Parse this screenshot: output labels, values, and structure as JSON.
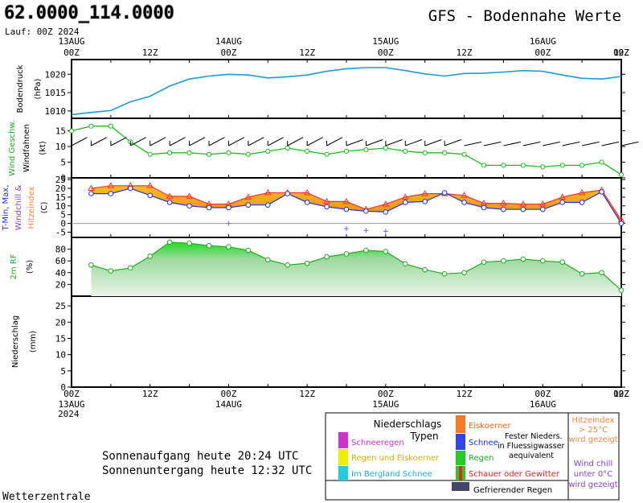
{
  "header": {
    "coords": "62.0000_114.0000",
    "run": "Lauf: 00Z",
    "title": "GFS - Bodennahe Werte"
  },
  "time_axis": {
    "hours": [
      "00Z",
      "12Z",
      "00Z",
      "12Z",
      "00Z",
      "12Z",
      "00Z",
      "12Z"
    ],
    "top_dates": [
      "13AUG",
      "14AUG",
      "15AUG",
      "16AUG"
    ],
    "top_year": "2024",
    "bottom_dates": [
      "13AUG",
      "14AUG",
      "15AUG",
      "16AUG"
    ],
    "bottom_year": "2024"
  },
  "colors": {
    "pressure": "#1e9bd7",
    "wind": "#22bb22",
    "tmax": "#ff3333",
    "wind_chill": "#2233dd",
    "heat_fill_top": "#f0c020",
    "heat_fill_bottom": "#f08020",
    "rh_top": "#00dd00",
    "rh_bottom": "#eaf3ea"
  },
  "chart_data": [
    {
      "type": "line",
      "name": "bodendruck",
      "ylabel": [
        "Bodendruck",
        "(hPa)"
      ],
      "yticks": [
        1010,
        1015,
        1020
      ],
      "ylim": [
        1008,
        1024
      ],
      "x": [
        0,
        3,
        6,
        9,
        12,
        15,
        18,
        21,
        24,
        27,
        30,
        33,
        36,
        39,
        42,
        45,
        48,
        51,
        54,
        57,
        60,
        63,
        66,
        69,
        72,
        75,
        78,
        81,
        84
      ],
      "values": [
        1009,
        1009.6,
        1010.1,
        1012.5,
        1014,
        1016.8,
        1018.7,
        1019.5,
        1020,
        1019.8,
        1019,
        1019.3,
        1019.8,
        1020.8,
        1021.5,
        1021.8,
        1021.8,
        1021,
        1020.1,
        1019.5,
        1020.2,
        1020.3,
        1020.6,
        1021,
        1020.8,
        1019.8,
        1018.9,
        1018.7,
        1019.4
      ]
    },
    {
      "type": "line",
      "name": "wind",
      "ylabel": [
        "Wind Geschw.",
        "Windfahnen",
        "(kt)"
      ],
      "yticks": [
        0,
        5,
        10,
        15
      ],
      "ylim": [
        0,
        19
      ],
      "x": [
        0,
        3,
        6,
        9,
        12,
        15,
        18,
        21,
        24,
        27,
        30,
        33,
        36,
        39,
        42,
        45,
        48,
        51,
        54,
        57,
        60,
        63,
        66,
        69,
        72,
        75,
        78,
        81,
        84
      ],
      "values": [
        15,
        16.5,
        16.5,
        11.5,
        7.5,
        8,
        8,
        7.5,
        8,
        7.5,
        8.5,
        9.5,
        8.5,
        7.5,
        8.5,
        9,
        9.5,
        8.5,
        8,
        8,
        7.5,
        4,
        4,
        4,
        3.5,
        4,
        4,
        5,
        1
      ]
    },
    {
      "type": "line",
      "name": "temperatur",
      "ylabel": [
        "T-Min, Max,",
        "Windchill &",
        "Hitzeindex",
        "(C)"
      ],
      "yticks": [
        -5,
        0,
        5,
        10,
        15,
        20,
        25
      ],
      "ylim": [
        -8,
        26
      ],
      "x": [
        3,
        6,
        9,
        12,
        15,
        18,
        21,
        24,
        27,
        30,
        33,
        36,
        39,
        42,
        45,
        48,
        51,
        54,
        57,
        60,
        63,
        66,
        69,
        72,
        75,
        78,
        81,
        84
      ],
      "series": [
        {
          "name": "T-Max",
          "values": [
            20,
            21.5,
            21.5,
            21.5,
            15.5,
            15.5,
            11,
            11,
            15,
            17.5,
            17.5,
            17.5,
            12.5,
            12.5,
            8,
            11,
            15,
            17,
            17,
            16,
            11.5,
            11.5,
            11,
            11,
            15,
            17.5,
            19,
            2
          ]
        },
        {
          "name": "T-Min",
          "values": [
            17,
            17,
            20,
            16,
            12,
            10,
            9,
            9,
            10.5,
            10.5,
            17,
            12,
            9.5,
            8,
            7,
            6.5,
            12,
            12.5,
            17.5,
            12,
            9,
            8,
            8,
            8,
            12,
            12,
            18,
            0
          ]
        }
      ],
      "minus_marks": [
        {
          "x": 24,
          "v": 0
        },
        {
          "x": 42,
          "v": -3
        },
        {
          "x": 45,
          "v": -4
        },
        {
          "x": 48,
          "v": -4.5
        }
      ]
    },
    {
      "type": "area",
      "name": "feuchte",
      "ylabel": [
        "2m RF",
        "(%)"
      ],
      "yticks": [
        20,
        40,
        60,
        80
      ],
      "ylim": [
        0,
        100
      ],
      "x": [
        3,
        6,
        9,
        12,
        15,
        18,
        21,
        24,
        27,
        30,
        33,
        36,
        39,
        42,
        45,
        48,
        51,
        54,
        57,
        60,
        63,
        66,
        69,
        72,
        75,
        78,
        81,
        84
      ],
      "values": [
        53,
        43,
        48,
        68,
        92,
        90,
        86,
        84,
        78,
        62,
        53,
        56,
        67,
        72,
        78,
        76,
        55,
        45,
        38,
        40,
        58,
        60,
        63,
        60,
        58,
        38,
        40,
        10
      ]
    },
    {
      "type": "bar",
      "name": "niederschlag",
      "ylabel": [
        "Niederschlag",
        "(mm)"
      ],
      "yticks": [
        0,
        5,
        10,
        15,
        20,
        25
      ],
      "ylim": [
        0,
        28
      ],
      "values": []
    }
  ],
  "legend": {
    "title1": "Niederschlags",
    "title2": "Typen",
    "schneeregen": "Schneeregen",
    "regen_eis": "Regen und Eiskoerner",
    "bergland": "Im Bergland Schnee",
    "eiskoerner": "Eiskoerner",
    "schnee": "Schnee",
    "fest1": "Fester Nieders.",
    "fest2": "in Fluessigwasser",
    "fest3": "aequivalent",
    "regen": "Regen",
    "schauer": "Schauer oder Gewitter",
    "gefrier": "Gefrierender Regen",
    "heat1": "Hitzeindex",
    "heat2": "> 25°C",
    "heat3": "wird gezeigt",
    "chill1": "Wind chill",
    "chill2": "unter 0°C",
    "chill3": "wird gezeigt"
  },
  "sun": {
    "rise": "Sonnenaufgang heute 20:24 UTC",
    "set": "Sonnenuntergang heute 12:32 UTC"
  },
  "footer": "Wetterzentrale"
}
